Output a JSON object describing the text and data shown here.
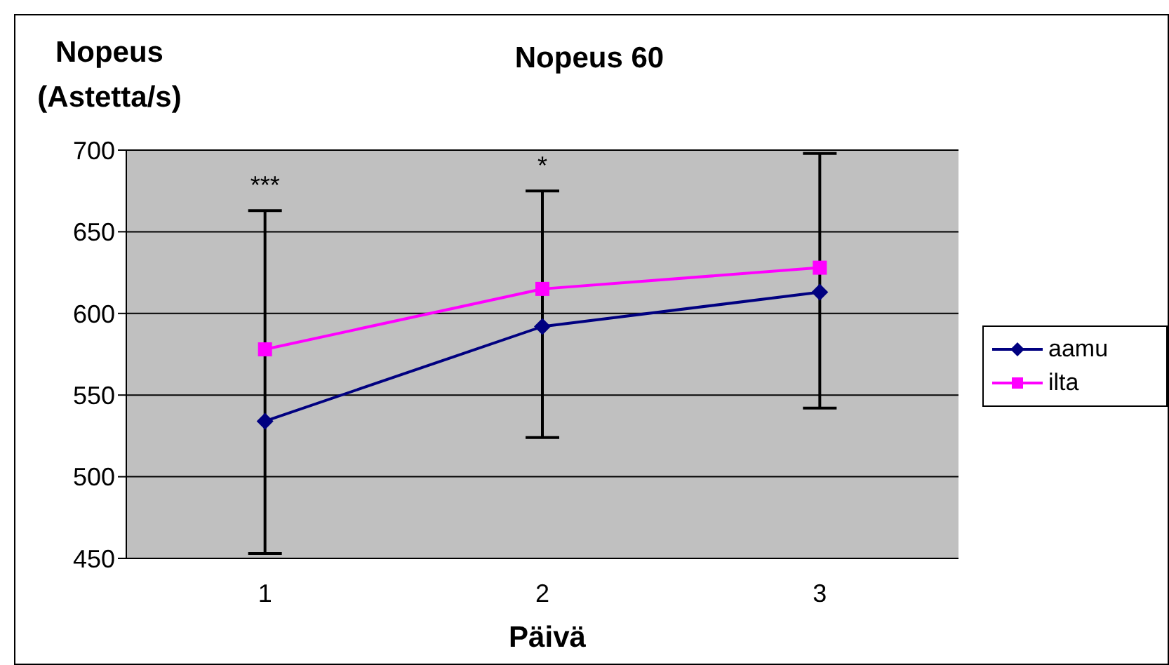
{
  "chart_data": {
    "type": "line",
    "title": "Nopeus 60",
    "ylabel": "Nopeus (Astetta/s)",
    "xlabel": "Päivä",
    "categories": [
      "1",
      "2",
      "3"
    ],
    "series": [
      {
        "name": "aamu",
        "color": "#000080",
        "marker": "diamond",
        "values": [
          534,
          592,
          613
        ],
        "errors": [
          [
            453,
            663
          ],
          [
            524,
            675
          ],
          [
            542,
            698
          ]
        ]
      },
      {
        "name": "ilta",
        "color": "#ff00ff",
        "marker": "square",
        "values": [
          578,
          615,
          628
        ]
      }
    ],
    "ylim": [
      450,
      700
    ],
    "yticks": [
      450,
      500,
      550,
      600,
      650,
      700
    ],
    "grid": "y",
    "legend": "right",
    "annotations": [
      "***",
      "*"
    ]
  }
}
